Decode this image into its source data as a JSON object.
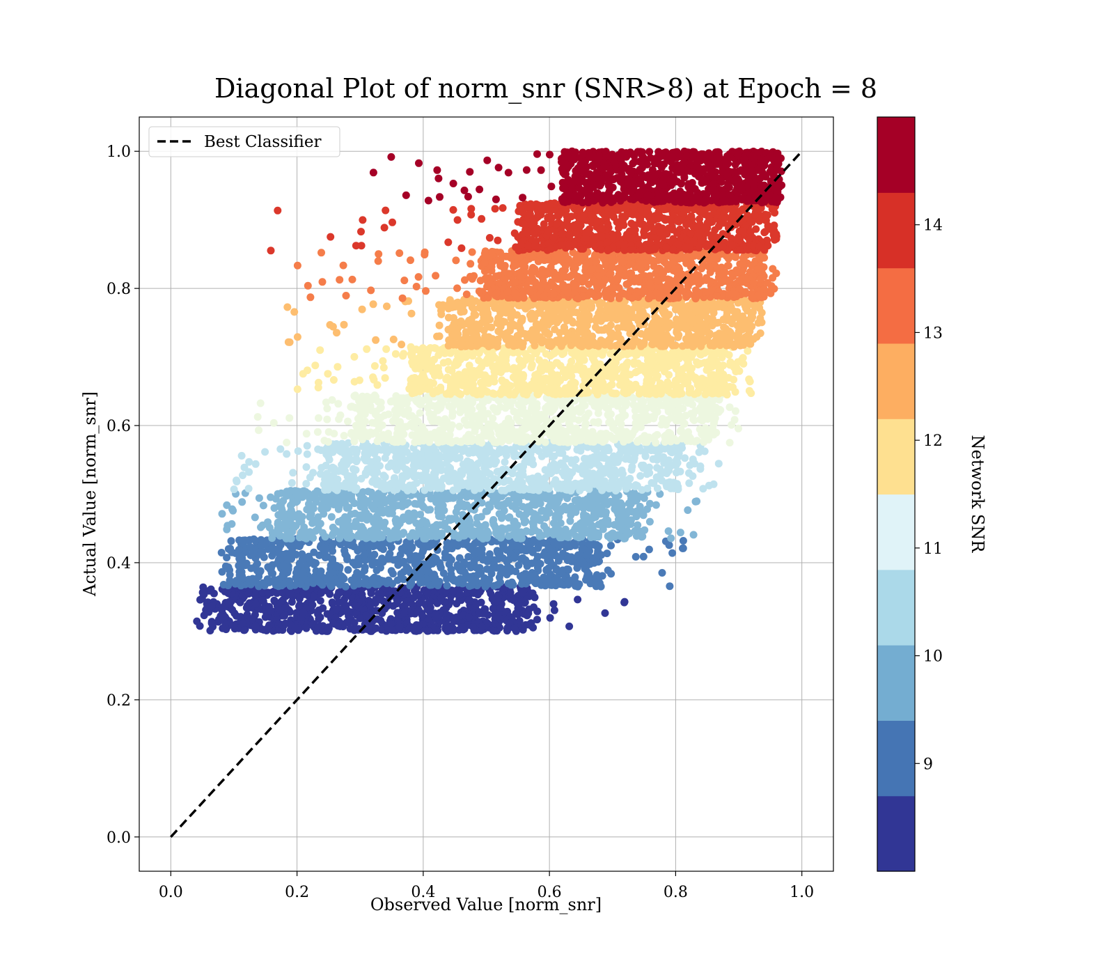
{
  "chart_data": {
    "type": "scatter",
    "title": "Diagonal Plot of norm_snr (SNR>8) at Epoch = 8",
    "xlabel": "Observed Value [norm_snr]",
    "ylabel": "Actual Value [norm_snr]",
    "xlim": [
      -0.05,
      1.05
    ],
    "ylim": [
      -0.05,
      1.05
    ],
    "x_ticks": [
      "0.0",
      "0.2",
      "0.4",
      "0.6",
      "0.8",
      "1.0"
    ],
    "y_ticks": [
      "0.0",
      "0.2",
      "0.4",
      "0.6",
      "0.8",
      "1.0"
    ],
    "grid": true,
    "legend": {
      "placement": "upper-left",
      "entries": [
        "Best Classifier"
      ]
    },
    "reference_line": {
      "name": "Best Classifier",
      "style": "dashed",
      "color": "#000000",
      "x": [
        0.0,
        1.0
      ],
      "y": [
        0.0,
        1.0
      ]
    },
    "colorbar": {
      "label": "Network SNR",
      "range": [
        8,
        15
      ],
      "ticks": [
        "9",
        "10",
        "11",
        "12",
        "13",
        "14"
      ],
      "tick_values": [
        9,
        10,
        11,
        12,
        13,
        14
      ],
      "colors": [
        "#313695",
        "#4575b4",
        "#74add1",
        "#abd9e9",
        "#e0f3f8",
        "#fee090",
        "#fdae61",
        "#f46d43",
        "#d73027",
        "#a50026"
      ]
    },
    "bands": [
      {
        "snr": "8-8.7",
        "color": "#313695",
        "y_range": [
          0.3,
          0.365
        ],
        "x_core": [
          0.08,
          0.57
        ],
        "x_scatter": [
          0.04,
          0.75
        ]
      },
      {
        "snr": "8.7-9.4",
        "color": "#4a7ab7",
        "y_range": [
          0.365,
          0.435
        ],
        "x_core": [
          0.11,
          0.68
        ],
        "x_scatter": [
          0.08,
          0.83
        ]
      },
      {
        "snr": "9.4-10.1",
        "color": "#82b6d6",
        "y_range": [
          0.435,
          0.505
        ],
        "x_core": [
          0.17,
          0.75
        ],
        "x_scatter": [
          0.08,
          0.84
        ]
      },
      {
        "snr": "10.1-10.8",
        "color": "#bfe2ee",
        "y_range": [
          0.505,
          0.575
        ],
        "x_core": [
          0.24,
          0.81
        ],
        "x_scatter": [
          0.1,
          0.87
        ]
      },
      {
        "snr": "10.8-11.5",
        "color": "#edf7e0",
        "y_range": [
          0.575,
          0.645
        ],
        "x_core": [
          0.29,
          0.86
        ],
        "x_scatter": [
          0.11,
          0.9
        ]
      },
      {
        "snr": "11.5-12.2",
        "color": "#feeca3",
        "y_range": [
          0.645,
          0.715
        ],
        "x_core": [
          0.38,
          0.89
        ],
        "x_scatter": [
          0.2,
          0.92
        ]
      },
      {
        "snr": "12.2-12.9",
        "color": "#fdbe70",
        "y_range": [
          0.715,
          0.785
        ],
        "x_core": [
          0.44,
          0.92
        ],
        "x_scatter": [
          0.18,
          0.94
        ]
      },
      {
        "snr": "12.9-13.6",
        "color": "#f57d4a",
        "y_range": [
          0.785,
          0.855
        ],
        "x_core": [
          0.49,
          0.94
        ],
        "x_scatter": [
          0.2,
          0.96
        ]
      },
      {
        "snr": "13.6-14.3",
        "color": "#db382b",
        "y_range": [
          0.855,
          0.925
        ],
        "x_core": [
          0.55,
          0.95
        ],
        "x_scatter": [
          0.15,
          0.96
        ]
      },
      {
        "snr": "14.3-15",
        "color": "#a50026",
        "y_range": [
          0.925,
          1.0
        ],
        "x_core": [
          0.62,
          0.96
        ],
        "x_scatter": [
          0.31,
          0.97
        ]
      }
    ]
  }
}
